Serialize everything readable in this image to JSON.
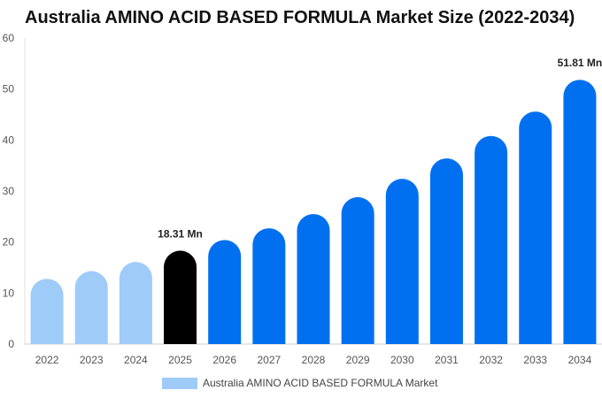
{
  "chart_data": {
    "type": "bar",
    "title": "Australia AMINO ACID BASED FORMULA Market Size (2022-2034)",
    "categories": [
      "2022",
      "2023",
      "2024",
      "2025",
      "2026",
      "2027",
      "2028",
      "2029",
      "2030",
      "2031",
      "2032",
      "2033",
      "2034"
    ],
    "values": [
      12.8,
      14.3,
      16.1,
      18.31,
      20.4,
      22.7,
      25.5,
      28.8,
      32.4,
      36.4,
      40.8,
      45.6,
      51.81
    ],
    "ylim": [
      0,
      60
    ],
    "yticks": [
      0,
      10,
      20,
      30,
      40,
      50,
      60
    ],
    "data_labels": [
      {
        "index": 3,
        "text": "18.31 Mn"
      },
      {
        "index": 12,
        "text": "51.81 Mn"
      }
    ],
    "legend": {
      "label": "Australia AMINO ACID BASED FORMULA Market",
      "position": "bottom"
    },
    "colors": {
      "historical": "#9fcbf9",
      "current": "#000000",
      "forecast": "#0070f0",
      "legend_swatch": "#9fcbf9"
    },
    "bar_color_groups": [
      "historical",
      "historical",
      "historical",
      "current",
      "forecast",
      "forecast",
      "forecast",
      "forecast",
      "forecast",
      "forecast",
      "forecast",
      "forecast",
      "forecast"
    ],
    "grid": false
  }
}
